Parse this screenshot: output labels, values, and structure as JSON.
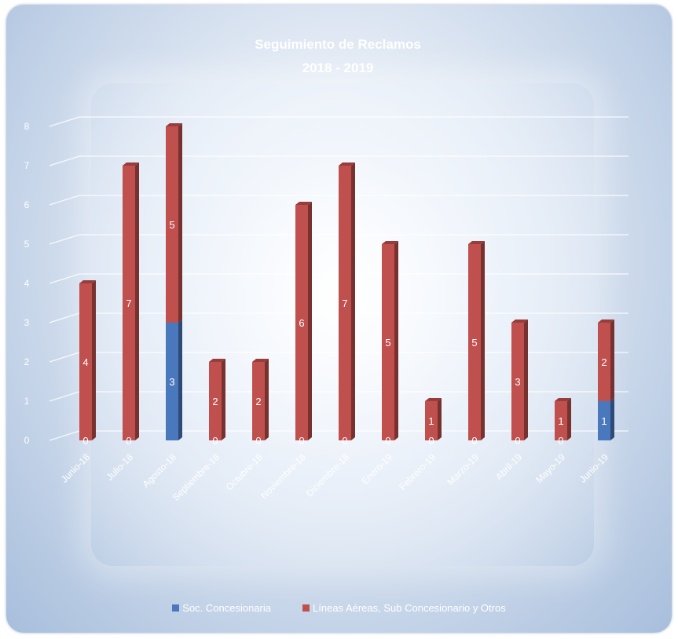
{
  "chart_data": {
    "type": "bar",
    "stacked": true,
    "title": "Seguimiento de Reclamos",
    "subtitle": "2018 - 2019",
    "categories": [
      "Junio-18",
      "Julio-18",
      "Agosto-18",
      "Septiembre-18",
      "Octubre-18",
      "Noviembre-18",
      "Diciembre-18",
      "Enero-19",
      "Febrero-19",
      "Marzo-19",
      "Abril-19",
      "Mayo-19",
      "Junio-19"
    ],
    "series": [
      {
        "name": "Soc. Concesionaria",
        "color": "#4a78bd",
        "values": [
          0,
          0,
          3,
          0,
          0,
          0,
          0,
          0,
          0,
          0,
          0,
          0,
          1
        ]
      },
      {
        "name": "Líneas Aéreas, Sub Concesionario y Otros",
        "color": "#c0504d",
        "values": [
          4,
          7,
          5,
          2,
          2,
          6,
          7,
          5,
          1,
          5,
          3,
          1,
          2
        ]
      }
    ],
    "ylim": [
      0,
      8
    ],
    "yticks": [
      0,
      1,
      2,
      3,
      4,
      5,
      6,
      7,
      8
    ],
    "xlabel": "",
    "ylabel": "",
    "grid": true,
    "legend_position": "bottom"
  }
}
